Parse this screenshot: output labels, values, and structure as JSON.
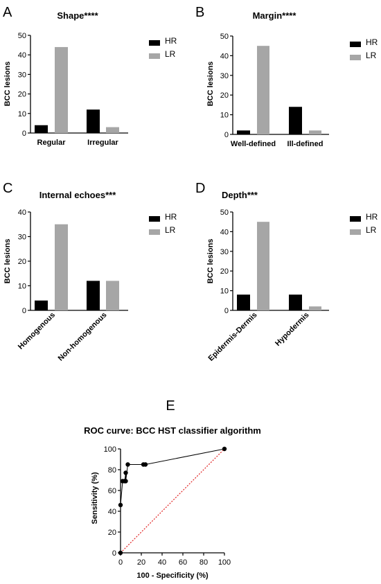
{
  "chart_data": [
    {
      "panel": "A",
      "type": "bar",
      "title": "Shape****",
      "ylabel": "BCC lesions",
      "xlabel": "",
      "categories": [
        "Regular",
        "Irregular"
      ],
      "series": [
        {
          "name": "HR",
          "values": [
            4,
            12
          ],
          "color": "#000000"
        },
        {
          "name": "LR",
          "values": [
            44,
            3
          ],
          "color": "#a6a6a6"
        }
      ],
      "ylim": [
        0,
        50
      ],
      "yticks": [
        0,
        10,
        20,
        30,
        40,
        50
      ],
      "legend": "right",
      "grid": false,
      "rotate_labels": false
    },
    {
      "panel": "B",
      "type": "bar",
      "title": "Margin****",
      "ylabel": "BCC lesions",
      "xlabel": "",
      "categories": [
        "Well-defined",
        "Ill-defined"
      ],
      "series": [
        {
          "name": "HR",
          "values": [
            2,
            14
          ],
          "color": "#000000"
        },
        {
          "name": "LR",
          "values": [
            45,
            2
          ],
          "color": "#a6a6a6"
        }
      ],
      "ylim": [
        0,
        50
      ],
      "yticks": [
        0,
        10,
        20,
        30,
        40,
        50
      ],
      "legend": "right",
      "grid": false,
      "rotate_labels": false
    },
    {
      "panel": "C",
      "type": "bar",
      "title": "Internal echoes***",
      "ylabel": "BCC lesions",
      "xlabel": "",
      "categories": [
        "Homogenous",
        "Non-homogenous"
      ],
      "series": [
        {
          "name": "HR",
          "values": [
            4,
            12
          ],
          "color": "#000000"
        },
        {
          "name": "LR",
          "values": [
            35,
            12
          ],
          "color": "#a6a6a6"
        }
      ],
      "ylim": [
        0,
        40
      ],
      "yticks": [
        0,
        10,
        20,
        30,
        40
      ],
      "legend": "right",
      "grid": false,
      "rotate_labels": true
    },
    {
      "panel": "D",
      "type": "bar",
      "title": "Depth***",
      "ylabel": "BCC lesions",
      "xlabel": "",
      "categories": [
        "Epidermis-Dermis",
        "Hypodermis"
      ],
      "series": [
        {
          "name": "HR",
          "values": [
            8,
            8
          ],
          "color": "#000000"
        },
        {
          "name": "LR",
          "values": [
            45,
            2
          ],
          "color": "#a6a6a6"
        }
      ],
      "ylim": [
        0,
        50
      ],
      "yticks": [
        0,
        10,
        20,
        30,
        40,
        50
      ],
      "legend": "right",
      "grid": false,
      "rotate_labels": true
    },
    {
      "panel": "E",
      "type": "line",
      "title": "ROC curve: BCC HST classifier algorithm",
      "xlabel": "100 - Specificity (%)",
      "ylabel": "Sensitivity (%)",
      "xlim": [
        0,
        100
      ],
      "ylim": [
        0,
        100
      ],
      "xticks": [
        0,
        20,
        40,
        60,
        80,
        100
      ],
      "yticks": [
        0,
        20,
        40,
        60,
        80,
        100
      ],
      "grid": false,
      "series": [
        {
          "values_xy": [
            [
              0,
              0
            ],
            [
              0,
              46
            ],
            [
              2,
              69
            ],
            [
              4,
              69
            ],
            [
              5,
              77
            ],
            [
              5,
              69
            ],
            [
              7,
              85
            ],
            [
              22,
              85
            ],
            [
              24,
              85
            ],
            [
              100,
              100
            ]
          ],
          "color": "#000000",
          "marker": "circle"
        },
        {
          "values_xy": [
            [
              0,
              0
            ],
            [
              100,
              100
            ]
          ],
          "color": "#e02020",
          "style": "dotted"
        }
      ]
    }
  ]
}
